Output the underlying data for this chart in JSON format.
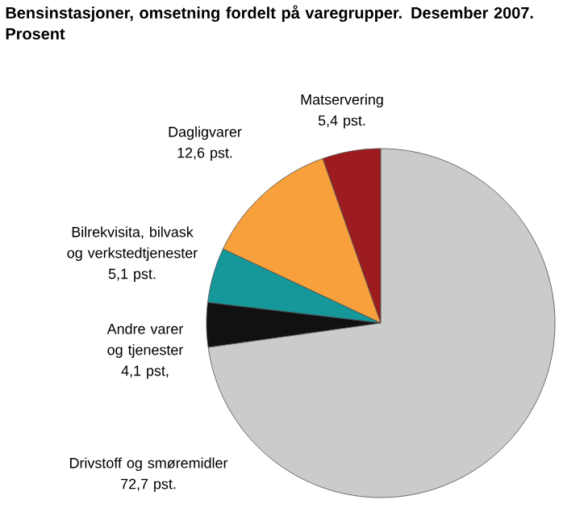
{
  "chart_data": {
    "type": "pie",
    "title": "Bensinstasjoner, omsetning fordelt på varegrupper. Desember 2007. Prosent",
    "categories": [
      "Matservering",
      "Dagligvarer",
      "Bilrekvisita, bilvask og verkstedtjenester",
      "Andre varer og tjenester",
      "Drivstoff og smøremidler"
    ],
    "values": [
      5.4,
      12.6,
      5.1,
      4.1,
      72.7
    ],
    "colors": [
      "#9c1c1f",
      "#f8a03c",
      "#16979a",
      "#111111",
      "#cbcbcb"
    ],
    "value_labels": [
      "5,4 pst.",
      "12,6 pst.",
      "5,1 pst.",
      "4,1 pst,",
      "72,7 pst."
    ]
  }
}
